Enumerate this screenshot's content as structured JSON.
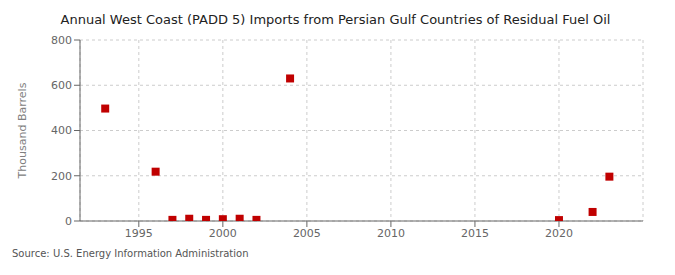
{
  "chart_data": {
    "type": "scatter",
    "title": "Annual West Coast (PADD 5) Imports from Persian Gulf Countries of Residual Fuel Oil",
    "ylabel": "Thousand Barrels",
    "annotation": "Source: U.S. Energy Information Administration",
    "x": [
      1993,
      1996,
      1997,
      1998,
      1999,
      2000,
      2001,
      2002,
      2004,
      2020,
      2022,
      2023
    ],
    "values": [
      497,
      218,
      5,
      10,
      5,
      8,
      10,
      5,
      630,
      4,
      40,
      196
    ],
    "color": "#c00000",
    "marker": "square",
    "grid": true,
    "xlim": [
      1991.5,
      2025
    ],
    "ylim": [
      0,
      800
    ],
    "xticks": [
      1995,
      2000,
      2005,
      2010,
      2015,
      2020
    ],
    "yticks": [
      0,
      200,
      400,
      600,
      800
    ]
  }
}
